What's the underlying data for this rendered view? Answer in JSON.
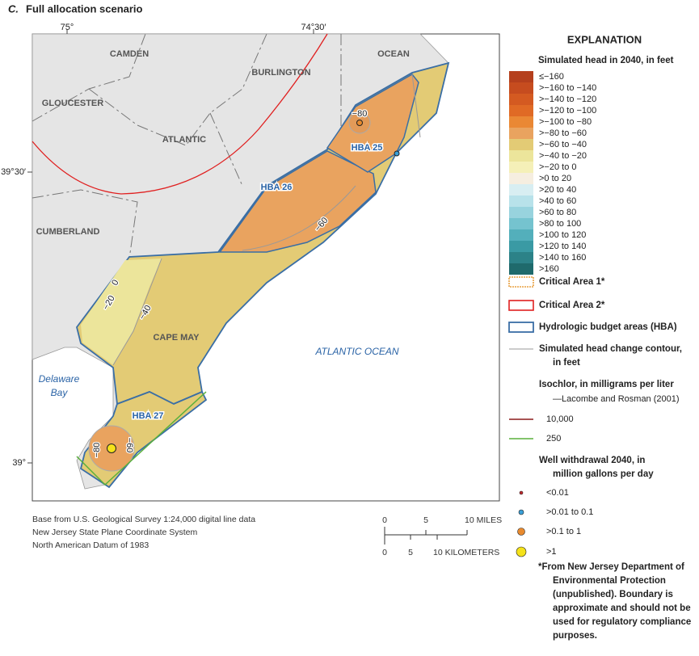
{
  "header": {
    "panel": "C.",
    "title": "Full allocation scenario"
  },
  "map": {
    "graticule": [
      "75°",
      "74°30′",
      "39°30′",
      "39°"
    ],
    "counties": [
      "CAMDEN",
      "BURLINGTON",
      "OCEAN",
      "GLOUCESTER",
      "ATLANTIC",
      "CUMBERLAND",
      "CAPE MAY"
    ],
    "water": [
      "ATLANTIC OCEAN",
      "Delaware",
      "Bay"
    ],
    "hba": [
      "HBA 25",
      "HBA 26",
      "HBA 27"
    ],
    "contours": [
      "−80",
      "−60",
      "0",
      "−20",
      "−40",
      "−80",
      "−60"
    ]
  },
  "notes": [
    "Base from U.S. Geological Survey 1:24,000 digital line data",
    "New Jersey State Plane Coordinate System",
    "North American Datum of 1983"
  ],
  "scale": {
    "miles": [
      "0",
      "5",
      "10 MILES"
    ],
    "kilometers": [
      "0",
      "5",
      "10 KILOMETERS"
    ]
  },
  "legend": {
    "title": "EXPLANATION",
    "head_title": "Simulated head in 2040, in feet",
    "head_classes": [
      {
        "label": "≤−160",
        "color": "#b5401d"
      },
      {
        "label": ">−160 to −140",
        "color": "#c64c1f"
      },
      {
        "label": ">−140 to −120",
        "color": "#d45a21"
      },
      {
        "label": ">−120 to −100",
        "color": "#e06a25"
      },
      {
        "label": ">−100 to −80",
        "color": "#ea8834"
      },
      {
        "label": ">−80 to −60",
        "color": "#e9a35f"
      },
      {
        "label": ">−60 to −40",
        "color": "#e3cb75"
      },
      {
        "label": ">−40 to −20",
        "color": "#ece59b"
      },
      {
        "label": ">−20 to 0",
        "color": "#f5f0b8"
      },
      {
        "label": ">0 to 20",
        "color": "#f6eee0"
      },
      {
        "label": ">20 to 40",
        "color": "#d8eef2"
      },
      {
        "label": ">40 to 60",
        "color": "#b8e2ea"
      },
      {
        "label": ">60 to 80",
        "color": "#98d3de"
      },
      {
        "label": ">80 to 100",
        "color": "#75c3cf"
      },
      {
        "label": ">100 to 120",
        "color": "#53afbb"
      },
      {
        "label": ">120 to 140",
        "color": "#3a9aa4"
      },
      {
        "label": ">140 to 160",
        "color": "#2c8288"
      },
      {
        "label": ">160",
        "color": "#1f6a6c"
      }
    ],
    "critical_area_1": "Critical Area 1*",
    "critical_area_2": "Critical Area 2*",
    "hba": "Hydrologic budget areas (HBA)",
    "contour": [
      "Simulated head change contour,",
      "in feet"
    ],
    "isochlor": [
      "Isochlor, in milligrams per liter",
      "—Lacombe and Rosman (2001)"
    ],
    "isochlor_10000": "10,000",
    "isochlor_250": "250",
    "withdrawal": [
      "Well withdrawal 2040, in",
      "million gallons per day"
    ],
    "withdrawal_classes": [
      "<0.01",
      ">0.01 to 0.1",
      ">0.1 to 1",
      ">1"
    ],
    "footnote": [
      "*From New Jersey Department of",
      "Environmental Protection",
      "(unpublished). Boundary is",
      "approximate and should not be",
      "used for regulatory compliance",
      "purposes."
    ]
  }
}
